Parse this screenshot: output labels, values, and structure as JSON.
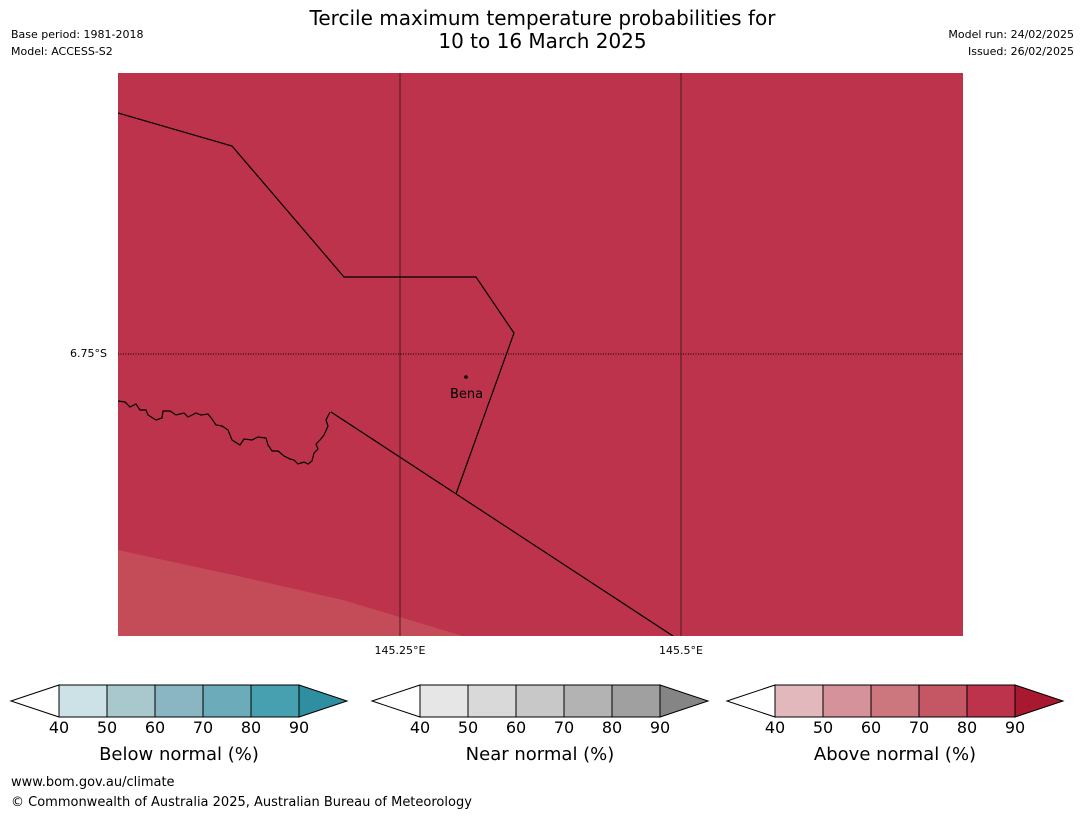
{
  "header": {
    "title_line1": "Tercile maximum temperature probabilities for",
    "title_line2": "10 to 16 March 2025",
    "base_period": "Base period: 1981-2018",
    "model": "Model: ACCESS-S2",
    "model_run": "Model run: 24/02/2025",
    "issued": "Issued: 26/02/2025"
  },
  "map": {
    "place_name": "Bena",
    "lon_labels": [
      "145.25°E",
      "145.5°E"
    ],
    "lat_label": "6.75°S",
    "fill_color_main": "#bc334b",
    "fill_color_lighter": "#c44b58"
  },
  "legends": [
    {
      "title": "Below normal (%)",
      "ticks": [
        "40",
        "50",
        "60",
        "70",
        "80",
        "90"
      ],
      "colors": [
        "#cce2e6",
        "#a9c8cd",
        "#8ab6c3",
        "#6babba",
        "#47a0b0",
        "#2f8fa0"
      ]
    },
    {
      "title": "Near normal (%)",
      "ticks": [
        "40",
        "50",
        "60",
        "70",
        "80",
        "90"
      ],
      "colors": [
        "#e6e6e6",
        "#d9d9d9",
        "#c8c8c8",
        "#b3b3b3",
        "#a0a0a0",
        "#858585"
      ]
    },
    {
      "title": "Above normal (%)",
      "ticks": [
        "40",
        "50",
        "60",
        "70",
        "80",
        "90"
      ],
      "colors": [
        "#e2b8bd",
        "#d6929a",
        "#cc767e",
        "#c55663",
        "#bc334b",
        "#a8182f"
      ]
    }
  ],
  "footer": {
    "url": "www.bom.gov.au/climate",
    "copyright": "© Commonwealth of Australia 2025, Australian Bureau of Meteorology"
  }
}
